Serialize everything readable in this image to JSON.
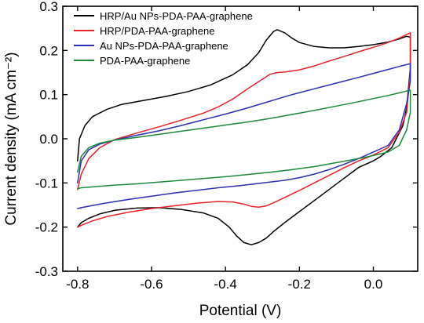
{
  "chart_data": {
    "type": "line",
    "title": "",
    "xlabel": "Potential (V)",
    "ylabel": "Current density (mA cm⁻²)",
    "xlim": [
      -0.84,
      0.12
    ],
    "ylim": [
      -0.3,
      0.3
    ],
    "xticks": [
      -0.8,
      -0.6,
      -0.4,
      -0.2,
      0.0
    ],
    "xtick_labels": [
      "-0.8",
      "-0.6",
      "-0.4",
      "-0.2",
      "0.0"
    ],
    "yticks": [
      -0.3,
      -0.2,
      -0.1,
      0.0,
      0.1,
      0.2,
      0.3
    ],
    "ytick_labels": [
      "-0.3",
      "-0.2",
      "-0.1",
      "0.0",
      "0.1",
      "0.2",
      "0.3"
    ],
    "grid": false,
    "legend_position": "top-left",
    "series": [
      {
        "name": "HRP/Au NPs-PDA-PAA-graphene",
        "color": "#000000",
        "x": [
          -0.8,
          -0.795,
          -0.78,
          -0.76,
          -0.72,
          -0.68,
          -0.62,
          -0.56,
          -0.5,
          -0.44,
          -0.38,
          -0.34,
          -0.31,
          -0.29,
          -0.27,
          -0.26,
          -0.24,
          -0.22,
          -0.2,
          -0.16,
          -0.12,
          -0.08,
          -0.04,
          0.0,
          0.04,
          0.07,
          0.09,
          0.1,
          0.1,
          0.09,
          0.08,
          0.05,
          0.02,
          0.0,
          -0.04,
          -0.08,
          -0.12,
          -0.16,
          -0.2,
          -0.24,
          -0.27,
          -0.29,
          -0.31,
          -0.33,
          -0.35,
          -0.37,
          -0.39,
          -0.42,
          -0.46,
          -0.52,
          -0.58,
          -0.64,
          -0.7,
          -0.74,
          -0.77,
          -0.79,
          -0.8
        ],
        "y": [
          -0.05,
          0.0,
          0.03,
          0.05,
          0.067,
          0.078,
          0.087,
          0.096,
          0.107,
          0.122,
          0.145,
          0.168,
          0.195,
          0.223,
          0.243,
          0.247,
          0.24,
          0.228,
          0.218,
          0.209,
          0.206,
          0.206,
          0.209,
          0.213,
          0.219,
          0.226,
          0.232,
          0.23,
          0.16,
          0.07,
          0.03,
          -0.02,
          -0.04,
          -0.05,
          -0.065,
          -0.09,
          -0.115,
          -0.14,
          -0.165,
          -0.19,
          -0.21,
          -0.225,
          -0.235,
          -0.24,
          -0.235,
          -0.22,
          -0.2,
          -0.18,
          -0.168,
          -0.16,
          -0.156,
          -0.157,
          -0.162,
          -0.17,
          -0.18,
          -0.19,
          -0.2
        ]
      },
      {
        "name": "HRP/PDA-PAA-graphene",
        "color": "#e8232a",
        "x": [
          -0.8,
          -0.79,
          -0.77,
          -0.74,
          -0.7,
          -0.64,
          -0.58,
          -0.52,
          -0.46,
          -0.42,
          -0.38,
          -0.34,
          -0.3,
          -0.28,
          -0.26,
          -0.24,
          -0.2,
          -0.16,
          -0.12,
          -0.08,
          -0.04,
          0.0,
          0.04,
          0.07,
          0.09,
          0.1,
          0.1,
          0.09,
          0.07,
          0.04,
          0.0,
          -0.04,
          -0.08,
          -0.12,
          -0.16,
          -0.2,
          -0.24,
          -0.27,
          -0.29,
          -0.31,
          -0.33,
          -0.35,
          -0.38,
          -0.42,
          -0.48,
          -0.54,
          -0.6,
          -0.66,
          -0.72,
          -0.76,
          -0.79,
          -0.8
        ],
        "y": [
          -0.115,
          -0.08,
          -0.045,
          -0.02,
          -0.002,
          0.013,
          0.027,
          0.042,
          0.058,
          0.072,
          0.09,
          0.113,
          0.135,
          0.146,
          0.15,
          0.151,
          0.156,
          0.165,
          0.176,
          0.186,
          0.197,
          0.207,
          0.218,
          0.228,
          0.236,
          0.24,
          0.15,
          0.06,
          0.015,
          -0.02,
          -0.037,
          -0.05,
          -0.066,
          -0.083,
          -0.1,
          -0.117,
          -0.133,
          -0.145,
          -0.152,
          -0.155,
          -0.153,
          -0.148,
          -0.143,
          -0.142,
          -0.146,
          -0.152,
          -0.158,
          -0.166,
          -0.176,
          -0.186,
          -0.196,
          -0.2
        ]
      },
      {
        "name": "Au NPs-PDA-PAA-graphene",
        "color": "#2a2fb5",
        "x": [
          -0.8,
          -0.79,
          -0.77,
          -0.74,
          -0.7,
          -0.64,
          -0.58,
          -0.52,
          -0.46,
          -0.4,
          -0.34,
          -0.28,
          -0.22,
          -0.16,
          -0.1,
          -0.04,
          0.0,
          0.04,
          0.08,
          0.1,
          0.1,
          0.09,
          0.07,
          0.04,
          0.0,
          -0.04,
          -0.08,
          -0.12,
          -0.16,
          -0.2,
          -0.24,
          -0.28,
          -0.32,
          -0.36,
          -0.42,
          -0.48,
          -0.54,
          -0.6,
          -0.66,
          -0.72,
          -0.76,
          -0.79,
          -0.8
        ],
        "y": [
          -0.1,
          -0.05,
          -0.025,
          -0.012,
          -0.003,
          0.008,
          0.018,
          0.03,
          0.043,
          0.056,
          0.07,
          0.085,
          0.1,
          0.113,
          0.126,
          0.139,
          0.148,
          0.157,
          0.166,
          0.17,
          0.13,
          0.08,
          0.02,
          -0.015,
          -0.03,
          -0.045,
          -0.058,
          -0.07,
          -0.08,
          -0.088,
          -0.094,
          -0.098,
          -0.102,
          -0.106,
          -0.111,
          -0.117,
          -0.123,
          -0.13,
          -0.137,
          -0.145,
          -0.151,
          -0.156,
          -0.158
        ]
      },
      {
        "name": "PDA-PAA-graphene",
        "color": "#1d8a3a",
        "x": [
          -0.8,
          -0.79,
          -0.77,
          -0.74,
          -0.7,
          -0.64,
          -0.58,
          -0.52,
          -0.46,
          -0.4,
          -0.34,
          -0.28,
          -0.22,
          -0.16,
          -0.1,
          -0.04,
          0.0,
          0.04,
          0.08,
          0.1,
          0.1,
          0.09,
          0.07,
          0.04,
          0.0,
          -0.04,
          -0.08,
          -0.12,
          -0.16,
          -0.22,
          -0.28,
          -0.34,
          -0.4,
          -0.46,
          -0.52,
          -0.58,
          -0.64,
          -0.7,
          -0.76,
          -0.79,
          -0.8
        ],
        "y": [
          -0.075,
          -0.04,
          -0.02,
          -0.01,
          -0.003,
          0.003,
          0.01,
          0.017,
          0.024,
          0.031,
          0.038,
          0.046,
          0.055,
          0.064,
          0.074,
          0.084,
          0.091,
          0.098,
          0.106,
          0.11,
          0.06,
          0.02,
          -0.015,
          -0.03,
          -0.038,
          -0.045,
          -0.051,
          -0.057,
          -0.063,
          -0.07,
          -0.076,
          -0.081,
          -0.086,
          -0.09,
          -0.094,
          -0.098,
          -0.102,
          -0.105,
          -0.109,
          -0.111,
          -0.113
        ]
      }
    ]
  }
}
